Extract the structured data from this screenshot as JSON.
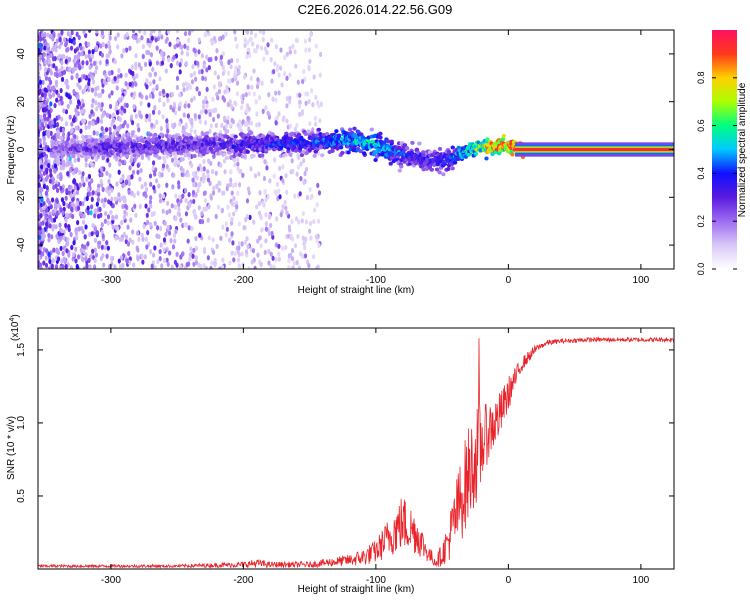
{
  "figure_title": "C2E6.2026.014.22.56.G09",
  "chart_data": [
    {
      "type": "heatmap",
      "title": "C2E6.2026.014.22.56.G09",
      "xlabel": "Height of straight line (km)",
      "ylabel": "Frequency (Hz)",
      "xlim": [
        -355,
        125
      ],
      "ylim": [
        -50,
        50
      ],
      "x_ticks": [
        -300,
        -200,
        -100,
        0,
        100
      ],
      "x_tick_labels": [
        "-300",
        "-200",
        "-100",
        "0",
        "100"
      ],
      "y_ticks": [
        -40,
        -20,
        0,
        20,
        40
      ],
      "y_tick_labels": [
        "-40",
        "-20",
        "0",
        "20",
        "40"
      ],
      "colorbar": {
        "label": "Normalized spectral amplitude",
        "range": [
          0,
          1
        ],
        "ticks": [
          0.0,
          0.2,
          0.4,
          0.6,
          0.8
        ],
        "tick_labels": [
          "0.0",
          "0.2",
          "0.4",
          "0.6",
          "0.8"
        ],
        "colors": [
          "#ffffff",
          "#d9c8f7",
          "#9d6cf2",
          "#5b1bdf",
          "#1010ff",
          "#00c8ff",
          "#00ff7f",
          "#aaff00",
          "#ffd000",
          "#ff3a1a",
          "#ff1060"
        ]
      },
      "ridge": {
        "description_x": [
          -350,
          -300,
          -250,
          -200,
          -150,
          -120,
          -100,
          -80,
          -60,
          -45,
          -30,
          -20,
          -10,
          0,
          10,
          125
        ],
        "center_freq_hz": [
          0,
          1,
          2,
          2,
          3,
          4,
          2,
          -2,
          -5,
          -4,
          0,
          1,
          1,
          1,
          0,
          0
        ],
        "peak_amplitude": [
          0.25,
          0.35,
          0.35,
          0.4,
          0.45,
          0.55,
          0.6,
          0.45,
          0.4,
          0.45,
          0.6,
          0.8,
          0.9,
          0.95,
          1.0,
          1.0
        ]
      }
    },
    {
      "type": "line",
      "title": "",
      "xlabel": "Height of straight line (km)",
      "ylabel": "SNR (10 * v/v)",
      "scale_note_prefix": "(x10",
      "scale_note_exp": "4",
      "scale_note_suffix": ")",
      "xlim": [
        -355,
        125
      ],
      "ylim": [
        0,
        1.65
      ],
      "x_ticks": [
        -300,
        -200,
        -100,
        0,
        100
      ],
      "x_tick_labels": [
        "-300",
        "-200",
        "-100",
        "0",
        "100"
      ],
      "y_ticks": [
        0.5,
        1.0,
        1.5
      ],
      "y_tick_labels": [
        "0.5",
        "1.0",
        "1.5"
      ],
      "color": "#e8242a",
      "series": [
        {
          "name": "SNR",
          "x": [
            -355,
            -300,
            -250,
            -200,
            -190,
            -180,
            -150,
            -120,
            -110,
            -100,
            -90,
            -80,
            -70,
            -60,
            -55,
            -50,
            -45,
            -40,
            -35,
            -30,
            -25,
            -22,
            -20,
            -15,
            -10,
            -5,
            0,
            5,
            10,
            15,
            20,
            25,
            30,
            40,
            60,
            80,
            100,
            125
          ],
          "y": [
            0.02,
            0.02,
            0.02,
            0.03,
            0.04,
            0.03,
            0.03,
            0.06,
            0.08,
            0.12,
            0.22,
            0.32,
            0.25,
            0.1,
            0.05,
            0.1,
            0.2,
            0.35,
            0.5,
            0.65,
            0.75,
            0.8,
            0.85,
            0.95,
            1.0,
            1.08,
            1.2,
            1.3,
            1.4,
            1.45,
            1.5,
            1.53,
            1.55,
            1.56,
            1.57,
            1.57,
            1.57,
            1.57
          ],
          "noise_amplitude": [
            0.01,
            0.01,
            0.01,
            0.02,
            0.03,
            0.02,
            0.02,
            0.04,
            0.06,
            0.08,
            0.14,
            0.2,
            0.15,
            0.06,
            0.04,
            0.08,
            0.15,
            0.25,
            0.3,
            0.35,
            0.3,
            0.4,
            0.25,
            0.2,
            0.18,
            0.15,
            0.12,
            0.08,
            0.05,
            0.04,
            0.03,
            0.02,
            0.02,
            0.015,
            0.015,
            0.015,
            0.015,
            0.015
          ]
        }
      ],
      "spike": {
        "x": -22,
        "y": 1.58
      }
    }
  ]
}
